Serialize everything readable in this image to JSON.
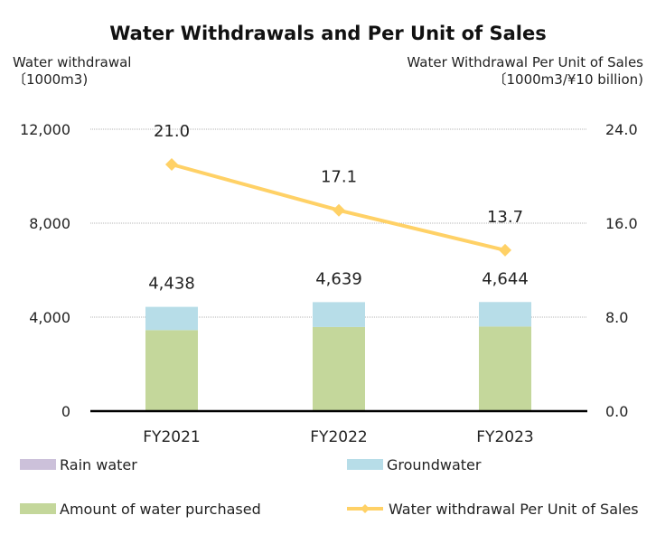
{
  "chart_data": {
    "type": "bar",
    "title": "Water Withdrawals and Per Unit of Sales",
    "y_left": {
      "label": "Water withdrawal",
      "unit": "〔1000m3)",
      "range": [
        0,
        12000
      ],
      "ticks": [
        0,
        4000,
        8000,
        12000
      ],
      "tick_labels": [
        "0",
        "4,000",
        "8,000",
        "12,000"
      ]
    },
    "y_right": {
      "label": "Water Withdrawal Per Unit of Sales",
      "unit": "〔1000m3/¥10 billion)",
      "range": [
        0,
        24
      ],
      "ticks": [
        0,
        8,
        16,
        24
      ],
      "tick_labels": [
        "0.0",
        "8.0",
        "16.0",
        "24.0"
      ]
    },
    "categories": [
      "FY2021",
      "FY2022",
      "FY2023"
    ],
    "series": [
      {
        "name": "Rain water",
        "kind": "bar-stack",
        "color": "#ccc1da",
        "values": [
          0,
          0,
          0
        ]
      },
      {
        "name": "Groundwater",
        "kind": "bar-stack",
        "color": "#b7dde8",
        "values": [
          990,
          1059,
          1044
        ]
      },
      {
        "name": "Amount of water purchased",
        "kind": "bar-stack",
        "color": "#c4d79b",
        "values": [
          3448,
          3580,
          3600
        ]
      },
      {
        "name": "Water withdrawal Per Unit of Sales",
        "kind": "line",
        "axis": "right",
        "color": "#ffd166",
        "values": [
          21.0,
          17.1,
          13.7
        ]
      }
    ],
    "totals": [
      4438,
      4639,
      4644
    ],
    "total_labels": [
      "4,438",
      "4,639",
      "4,644"
    ],
    "line_labels": [
      "21.0",
      "17.1",
      "13.7"
    ],
    "legend": {
      "placement": "bottom",
      "order": [
        "Rain water",
        "Groundwater",
        "Amount of water purchased",
        "Water withdrawal Per Unit of Sales"
      ]
    },
    "grid": true
  }
}
